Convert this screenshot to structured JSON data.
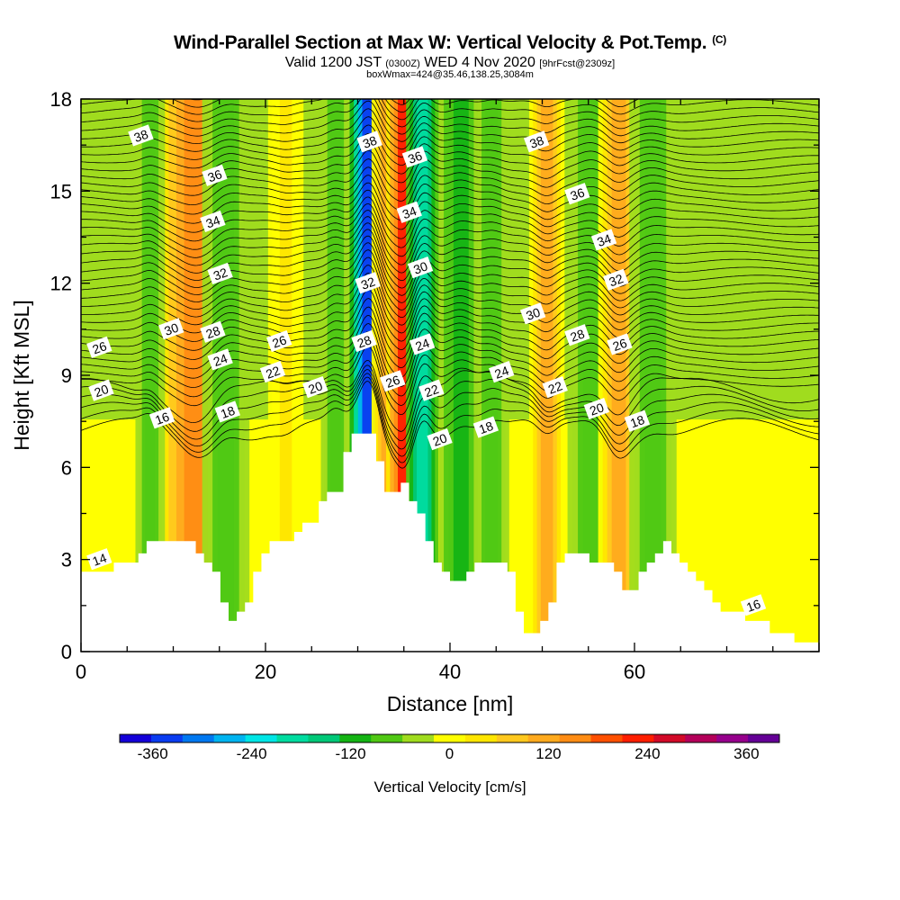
{
  "header": {
    "title": "Wind-Parallel Section at Max W: Vertical Velocity & Pot.Temp.",
    "title_mark": "(C)",
    "subtitle_valid": "Valid 1200 JST",
    "subtitle_utc": "(0300Z)",
    "subtitle_date": "WED 4 Nov 2020",
    "subtitle_fcst": "[9hrFcst@2309z]",
    "subsubtitle": "boxWmax=424@35.46,138.25,3084m"
  },
  "chart_data": {
    "type": "heatmap",
    "title": "Wind-Parallel Section at Max W: Vertical Velocity & Pot.Temp.",
    "xlabel": "Distance [nm]",
    "ylabel": "Height [Kft MSL]",
    "xlim": [
      0,
      80
    ],
    "ylim": [
      0,
      18
    ],
    "x_ticks": [
      "0",
      "20",
      "40",
      "60"
    ],
    "y_ticks": [
      "0",
      "3",
      "6",
      "9",
      "12",
      "15",
      "18"
    ],
    "colorbar": {
      "label": "Vertical Velocity [cm/s]",
      "ticks": [
        "-360",
        "-240",
        "-120",
        "0",
        "120",
        "240",
        "360"
      ],
      "min": -400,
      "max": 400,
      "step": 40,
      "colors": [
        "#1400d8",
        "#0a3cf0",
        "#0078f0",
        "#00b4f0",
        "#00e6e6",
        "#00dca0",
        "#00c878",
        "#14b414",
        "#50c814",
        "#a0dc1e",
        "#ffff00",
        "#ffe600",
        "#ffc81e",
        "#ffaa1e",
        "#ff8c14",
        "#ff5000",
        "#ff1e00",
        "#d20a28",
        "#b4005a",
        "#96008c",
        "#640096"
      ]
    },
    "theta_contour_labels": [
      {
        "x": 6.5,
        "y": 16.8,
        "text": "38"
      },
      {
        "x": 14.5,
        "y": 15.5,
        "text": "36"
      },
      {
        "x": 14.3,
        "y": 14.0,
        "text": "34"
      },
      {
        "x": 15.1,
        "y": 12.3,
        "text": "32"
      },
      {
        "x": 9.8,
        "y": 10.5,
        "text": "30"
      },
      {
        "x": 14.3,
        "y": 10.4,
        "text": "28"
      },
      {
        "x": 2.0,
        "y": 9.9,
        "text": "26"
      },
      {
        "x": 15.1,
        "y": 9.5,
        "text": "24"
      },
      {
        "x": 2.2,
        "y": 8.5,
        "text": "20"
      },
      {
        "x": 8.8,
        "y": 7.6,
        "text": "16"
      },
      {
        "x": 15.9,
        "y": 7.8,
        "text": "18"
      },
      {
        "x": 21.5,
        "y": 10.1,
        "text": "26"
      },
      {
        "x": 20.8,
        "y": 9.1,
        "text": "22"
      },
      {
        "x": 25.4,
        "y": 8.6,
        "text": "20"
      },
      {
        "x": 31.3,
        "y": 16.6,
        "text": "38"
      },
      {
        "x": 36.2,
        "y": 16.1,
        "text": "36"
      },
      {
        "x": 35.6,
        "y": 14.3,
        "text": "34"
      },
      {
        "x": 36.8,
        "y": 12.5,
        "text": "30"
      },
      {
        "x": 31.1,
        "y": 12.0,
        "text": "32"
      },
      {
        "x": 30.7,
        "y": 10.1,
        "text": "28"
      },
      {
        "x": 37.0,
        "y": 10.0,
        "text": "24"
      },
      {
        "x": 33.8,
        "y": 8.8,
        "text": "26"
      },
      {
        "x": 38.0,
        "y": 8.5,
        "text": "22"
      },
      {
        "x": 38.9,
        "y": 6.9,
        "text": "20"
      },
      {
        "x": 45.6,
        "y": 9.1,
        "text": "24"
      },
      {
        "x": 43.9,
        "y": 7.3,
        "text": "18"
      },
      {
        "x": 49.4,
        "y": 16.6,
        "text": "38"
      },
      {
        "x": 53.8,
        "y": 14.9,
        "text": "36"
      },
      {
        "x": 56.7,
        "y": 13.4,
        "text": "34"
      },
      {
        "x": 58.0,
        "y": 12.1,
        "text": "32"
      },
      {
        "x": 49.0,
        "y": 11.0,
        "text": "30"
      },
      {
        "x": 53.8,
        "y": 10.3,
        "text": "28"
      },
      {
        "x": 58.4,
        "y": 10.0,
        "text": "26"
      },
      {
        "x": 51.4,
        "y": 8.6,
        "text": "22"
      },
      {
        "x": 55.9,
        "y": 7.9,
        "text": "20"
      },
      {
        "x": 60.3,
        "y": 7.5,
        "text": "18"
      },
      {
        "x": 2.0,
        "y": 3.0,
        "text": "14"
      },
      {
        "x": 72.9,
        "y": 1.5,
        "text": "16"
      }
    ],
    "vertical_velocity_features": [
      {
        "x": 12.5,
        "width": 2.4,
        "value": 180
      },
      {
        "x": 15.7,
        "width": 1.6,
        "value": -80
      },
      {
        "x": 7.5,
        "width": 1.0,
        "value": -60
      },
      {
        "x": 22.2,
        "width": 1.2,
        "value": 40
      },
      {
        "x": 27.6,
        "width": 1.0,
        "value": -80
      },
      {
        "x": 31.2,
        "width": 1.3,
        "value": -360
      },
      {
        "x": 33.1,
        "width": 1.0,
        "value": 120
      },
      {
        "x": 35.0,
        "width": 1.2,
        "value": 260
      },
      {
        "x": 37.0,
        "width": 1.1,
        "value": -200
      },
      {
        "x": 41.2,
        "width": 1.5,
        "value": -100
      },
      {
        "x": 44.5,
        "width": 1.2,
        "value": -60
      },
      {
        "x": 50.5,
        "width": 1.2,
        "value": 120
      },
      {
        "x": 55.3,
        "width": 1.6,
        "value": -80
      },
      {
        "x": 58.3,
        "width": 1.4,
        "value": 150
      },
      {
        "x": 62.0,
        "width": 1.6,
        "value": -60
      }
    ],
    "terrain_height": [
      2.6,
      2.6,
      2.6,
      2.6,
      2.9,
      2.9,
      2.9,
      3.2,
      3.6,
      3.6,
      3.6,
      3.6,
      3.6,
      3.6,
      3.2,
      2.9,
      2.6,
      1.6,
      1.0,
      1.3,
      1.6,
      2.6,
      3.2,
      3.6,
      3.6,
      3.6,
      3.9,
      4.2,
      4.2,
      4.9,
      5.2,
      5.2,
      6.5,
      7.1,
      7.1,
      7.1,
      6.2,
      5.2,
      5.2,
      5.5,
      4.9,
      4.5,
      3.6,
      2.9,
      2.6,
      2.3,
      2.3,
      2.6,
      2.9,
      2.9,
      2.9,
      2.9,
      2.6,
      1.3,
      0.6,
      0.6,
      1.0,
      1.6,
      2.9,
      3.2,
      3.2,
      3.2,
      2.9,
      2.9,
      2.9,
      2.6,
      2.0,
      2.0,
      2.6,
      2.9,
      3.2,
      3.6,
      3.2,
      2.9,
      2.6,
      2.3,
      2.0,
      1.6,
      1.3,
      1.3,
      1.3,
      1.0,
      1.0,
      1.0,
      0.6,
      0.6,
      0.6,
      0.3,
      0.3,
      0.3,
      0.3
    ]
  }
}
